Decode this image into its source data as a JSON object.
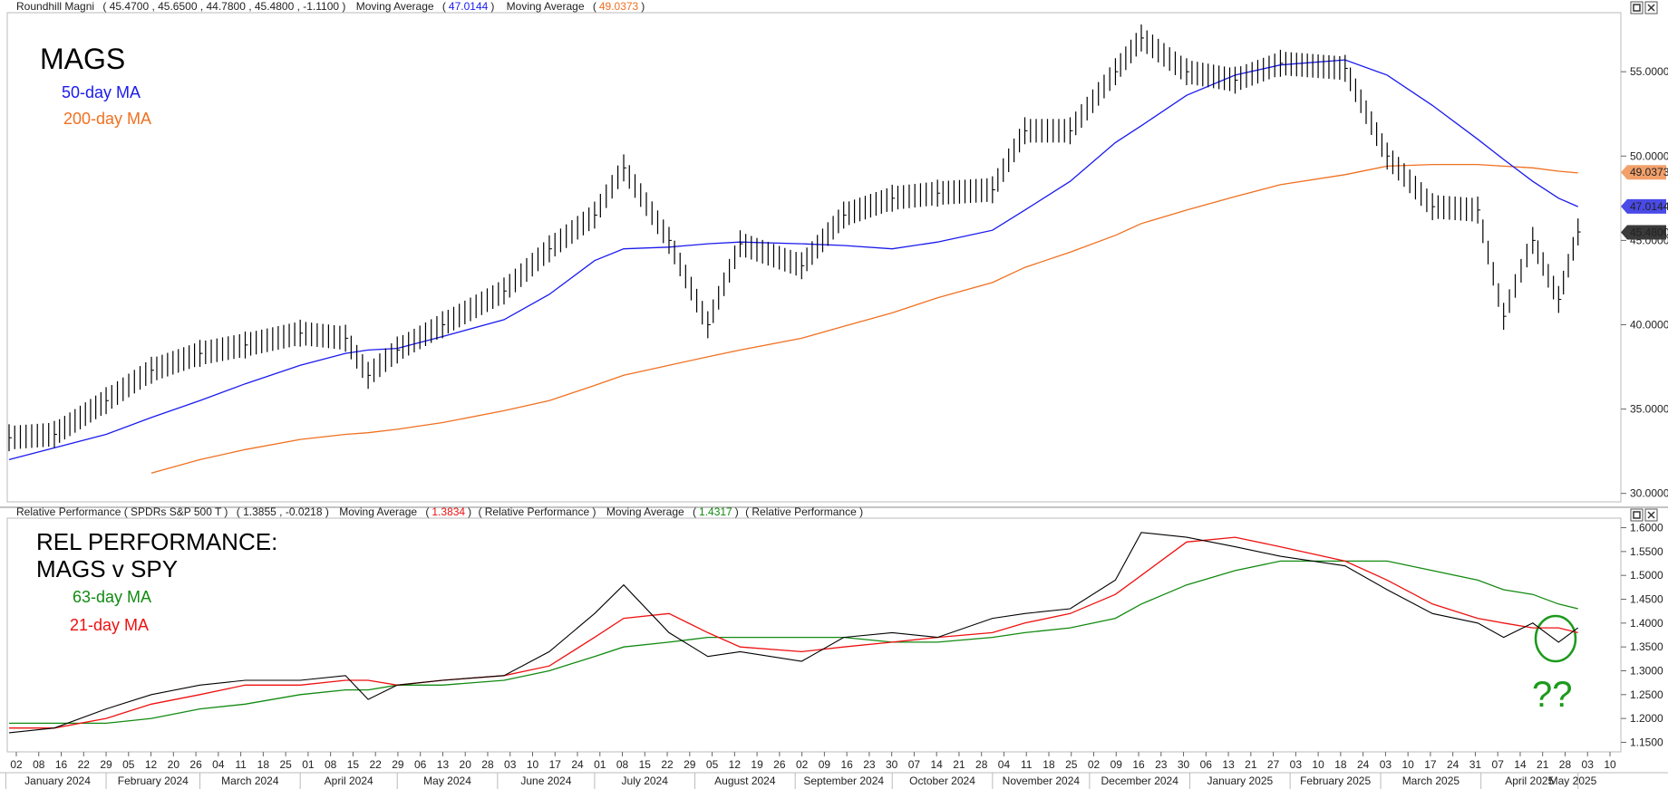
{
  "top_panel": {
    "legend": {
      "security": "Roundhill Magni",
      "values": "( 45.4700 ,  45.6500 ,  44.7800 ,  45.4800 ,  -1.1100 )",
      "ma1_label": "Moving Average",
      "ma1_value": "47.0144",
      "ma2_label": "Moving Average",
      "ma2_value": "49.0373"
    },
    "title": "MAGS",
    "ma50_label": "50-day MA",
    "ma200_label": "200-day MA",
    "y_ticks": [
      "55.0000",
      "50.0000",
      "45.0000",
      "40.0000",
      "35.0000",
      "30.0000"
    ],
    "y_tick_values": [
      55,
      50,
      45,
      40,
      35,
      30
    ],
    "badges": {
      "ma200": "49.0373",
      "ma50": "47.0144",
      "price": "45.4800"
    }
  },
  "bottom_panel": {
    "legend": {
      "security": "Relative Performance ( SPDRs S&P 500 T )",
      "values": "( 1.3855 ,  -0.0218 )",
      "ma1_label": "Moving Average",
      "ma1_value": "1.3834",
      "ma1_suffix": "( Relative Performance )",
      "ma2_label": "Moving Average",
      "ma2_value": "1.4317",
      "ma2_suffix": "( Relative Performance )"
    },
    "title_line1": "REL PERFORMANCE:",
    "title_line2": "MAGS v SPY",
    "ma63_label": "63-day MA",
    "ma21_label": "21-day MA",
    "annotation": "??",
    "y_ticks": [
      "1.6000",
      "1.5500",
      "1.5000",
      "1.4500",
      "1.4000",
      "1.3500",
      "1.3000",
      "1.2500",
      "1.2000",
      "1.1500"
    ],
    "y_tick_values": [
      1.6,
      1.55,
      1.5,
      1.45,
      1.4,
      1.35,
      1.3,
      1.25,
      1.2,
      1.15
    ]
  },
  "x_axis": {
    "day_ticks": [
      "02",
      "08",
      "16",
      "22",
      "29",
      "05",
      "12",
      "20",
      "26",
      "04",
      "11",
      "18",
      "25",
      "01",
      "08",
      "15",
      "22",
      "29",
      "06",
      "13",
      "20",
      "28",
      "03",
      "10",
      "17",
      "24",
      "01",
      "08",
      "15",
      "22",
      "29",
      "05",
      "12",
      "19",
      "26",
      "02",
      "09",
      "16",
      "23",
      "30",
      "07",
      "14",
      "21",
      "28",
      "04",
      "11",
      "18",
      "25",
      "02",
      "09",
      "16",
      "23",
      "30",
      "06",
      "13",
      "21",
      "27",
      "03",
      "10",
      "18",
      "24",
      "03",
      "10",
      "17",
      "24",
      "31",
      "07",
      "14",
      "21",
      "28",
      "03",
      "10"
    ],
    "months": [
      "January 2024",
      "February 2024",
      "March 2024",
      "April 2024",
      "May 2024",
      "June 2024",
      "July 2024",
      "August 2024",
      "September 2024",
      "October 2024",
      "November 2024",
      "December 2024",
      "January 2025",
      "February 2025",
      "March 2025",
      "April 2025",
      "May 2025"
    ]
  },
  "colors": {
    "price": "#000000",
    "ma50": "#1a1aee",
    "ma200": "#f07020",
    "rel": "#000000",
    "ma21": "#ee1111",
    "ma63": "#128a12",
    "annotation": "#1c9a1c"
  },
  "chart_data": [
    {
      "type": "line",
      "title": "MAGS",
      "x": [
        "2024-01-02",
        "2024-01-16",
        "2024-02-01",
        "2024-02-15",
        "2024-03-01",
        "2024-03-15",
        "2024-04-01",
        "2024-04-15",
        "2024-04-22",
        "2024-05-01",
        "2024-05-15",
        "2024-06-03",
        "2024-06-17",
        "2024-07-01",
        "2024-07-10",
        "2024-07-24",
        "2024-08-05",
        "2024-08-15",
        "2024-09-03",
        "2024-09-16",
        "2024-10-01",
        "2024-10-15",
        "2024-11-01",
        "2024-11-11",
        "2024-11-25",
        "2024-12-09",
        "2024-12-17",
        "2024-12-31",
        "2025-01-15",
        "2025-01-29",
        "2025-02-18",
        "2025-03-03",
        "2025-03-17",
        "2025-03-31",
        "2025-04-08",
        "2025-04-17",
        "2025-04-25",
        "2025-05-01"
      ],
      "series": [
        {
          "name": "MAGS",
          "values": [
            33.3,
            33.5,
            35.5,
            37.3,
            38.3,
            38.8,
            39.5,
            39.2,
            37.0,
            38.5,
            40.0,
            42.0,
            44.5,
            46.5,
            49.3,
            45.0,
            40.0,
            44.8,
            43.5,
            46.5,
            47.5,
            47.8,
            48.0,
            51.5,
            51.5,
            55.0,
            57.0,
            55.0,
            54.5,
            55.5,
            55.2,
            50.0,
            47.0,
            46.8,
            40.5,
            45.0,
            41.5,
            45.5
          ]
        },
        {
          "name": "50-day MA",
          "values": [
            32.0,
            32.7,
            33.5,
            34.5,
            35.5,
            36.5,
            37.6,
            38.3,
            38.5,
            38.6,
            39.3,
            40.3,
            41.8,
            43.8,
            44.5,
            44.6,
            44.8,
            44.9,
            44.8,
            44.7,
            44.5,
            44.9,
            45.6,
            46.8,
            48.5,
            50.8,
            51.8,
            53.6,
            54.8,
            55.4,
            55.7,
            54.8,
            53.0,
            51.0,
            49.8,
            48.5,
            47.5,
            47.0
          ]
        },
        {
          "name": "200-day MA",
          "values": [
            null,
            null,
            null,
            31.2,
            32.0,
            32.6,
            33.2,
            33.5,
            33.6,
            33.8,
            34.2,
            34.9,
            35.5,
            36.4,
            37.0,
            37.6,
            38.1,
            38.5,
            39.2,
            39.9,
            40.7,
            41.6,
            42.5,
            43.4,
            44.3,
            45.3,
            46.0,
            46.8,
            47.6,
            48.3,
            48.9,
            49.4,
            49.5,
            49.5,
            49.4,
            49.3,
            49.1,
            49.0
          ]
        }
      ],
      "ylim": [
        29.5,
        58.5
      ]
    },
    {
      "type": "line",
      "title": "REL PERFORMANCE: MAGS v SPY",
      "x": [
        "2024-01-02",
        "2024-01-16",
        "2024-02-01",
        "2024-02-15",
        "2024-03-01",
        "2024-03-15",
        "2024-04-01",
        "2024-04-15",
        "2024-04-22",
        "2024-05-01",
        "2024-05-15",
        "2024-06-03",
        "2024-06-17",
        "2024-07-01",
        "2024-07-10",
        "2024-07-24",
        "2024-08-05",
        "2024-08-15",
        "2024-09-03",
        "2024-09-16",
        "2024-10-01",
        "2024-10-15",
        "2024-11-01",
        "2024-11-11",
        "2024-11-25",
        "2024-12-09",
        "2024-12-17",
        "2024-12-31",
        "2025-01-15",
        "2025-01-29",
        "2025-02-18",
        "2025-03-03",
        "2025-03-17",
        "2025-03-31",
        "2025-04-08",
        "2025-04-17",
        "2025-04-25",
        "2025-05-01"
      ],
      "series": [
        {
          "name": "Relative Performance",
          "values": [
            1.17,
            1.18,
            1.22,
            1.25,
            1.27,
            1.28,
            1.28,
            1.29,
            1.24,
            1.27,
            1.28,
            1.29,
            1.34,
            1.42,
            1.48,
            1.38,
            1.33,
            1.34,
            1.32,
            1.37,
            1.38,
            1.37,
            1.41,
            1.42,
            1.43,
            1.49,
            1.59,
            1.58,
            1.56,
            1.54,
            1.52,
            1.47,
            1.42,
            1.4,
            1.37,
            1.4,
            1.36,
            1.39
          ]
        },
        {
          "name": "21-day MA",
          "values": [
            1.18,
            1.18,
            1.2,
            1.23,
            1.25,
            1.27,
            1.27,
            1.28,
            1.28,
            1.27,
            1.28,
            1.29,
            1.31,
            1.37,
            1.41,
            1.42,
            1.38,
            1.35,
            1.34,
            1.35,
            1.36,
            1.37,
            1.38,
            1.4,
            1.42,
            1.46,
            1.5,
            1.57,
            1.58,
            1.56,
            1.53,
            1.49,
            1.44,
            1.41,
            1.4,
            1.39,
            1.39,
            1.38
          ]
        },
        {
          "name": "63-day MA",
          "values": [
            1.19,
            1.19,
            1.19,
            1.2,
            1.22,
            1.23,
            1.25,
            1.26,
            1.26,
            1.27,
            1.27,
            1.28,
            1.3,
            1.33,
            1.35,
            1.36,
            1.37,
            1.37,
            1.37,
            1.37,
            1.36,
            1.36,
            1.37,
            1.38,
            1.39,
            1.41,
            1.44,
            1.48,
            1.51,
            1.53,
            1.53,
            1.53,
            1.51,
            1.49,
            1.47,
            1.46,
            1.44,
            1.43
          ]
        }
      ],
      "ylim": [
        1.13,
        1.62
      ]
    }
  ]
}
